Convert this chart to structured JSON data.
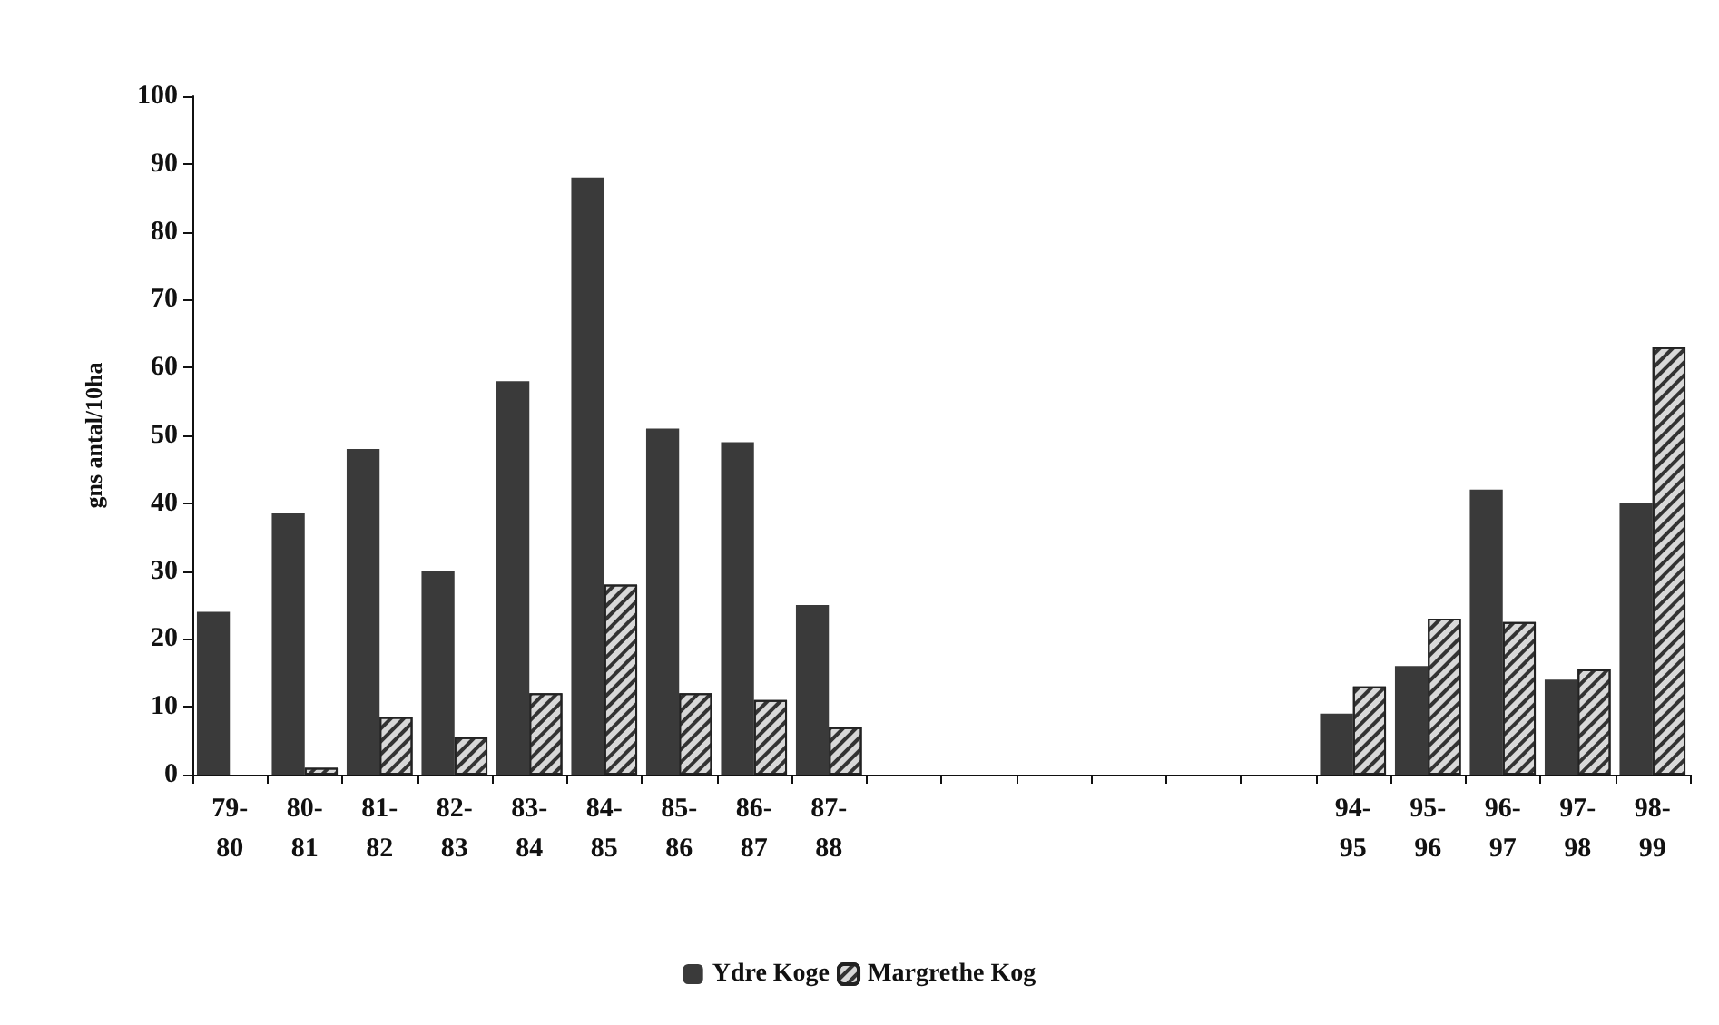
{
  "chart_data": {
    "type": "bar",
    "ylabel": "gns antal/10ha",
    "categories": [
      "79-80",
      "80-81",
      "81-82",
      "82-83",
      "83-84",
      "84-85",
      "85-86",
      "86-87",
      "87-88",
      null,
      null,
      null,
      null,
      null,
      null,
      "94-95",
      "95-96",
      "96-97",
      "97-98",
      "98-99"
    ],
    "series": [
      {
        "name": "Ydre Koge",
        "color": "#3a3a3a",
        "values": [
          24,
          38.5,
          48,
          30,
          58,
          88,
          51,
          49,
          25,
          null,
          null,
          null,
          null,
          null,
          null,
          9,
          16,
          42,
          14,
          40
        ]
      },
      {
        "name": "Margrethe Kog",
        "color": "#d8d8d8",
        "values": [
          null,
          1,
          8.5,
          5.5,
          12,
          28,
          12,
          11,
          7,
          null,
          null,
          null,
          null,
          null,
          null,
          13,
          23,
          22.5,
          15.5,
          63
        ]
      }
    ],
    "ylim": [
      0,
      100
    ],
    "yticks": [
      0,
      10,
      20,
      30,
      40,
      50,
      60,
      70,
      80,
      90,
      100
    ],
    "grid": false,
    "legend": "bottom"
  }
}
